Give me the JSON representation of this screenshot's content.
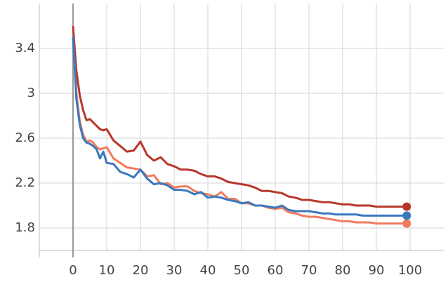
{
  "chart_data": {
    "type": "line",
    "x": [
      0,
      1,
      2,
      3,
      4,
      5,
      6,
      7,
      8,
      9,
      10,
      12,
      14,
      16,
      18,
      20,
      22,
      24,
      26,
      28,
      30,
      32,
      34,
      36,
      38,
      40,
      42,
      44,
      46,
      48,
      50,
      52,
      54,
      56,
      58,
      60,
      62,
      64,
      66,
      68,
      70,
      72,
      74,
      76,
      78,
      80,
      82,
      84,
      86,
      88,
      90,
      92,
      94,
      96,
      98,
      99
    ],
    "series": [
      {
        "color": "#b8372b",
        "values": [
          3.6,
          3.2,
          2.98,
          2.85,
          2.76,
          2.77,
          2.74,
          2.71,
          2.68,
          2.67,
          2.68,
          2.58,
          2.53,
          2.48,
          2.49,
          2.57,
          2.45,
          2.4,
          2.43,
          2.37,
          2.35,
          2.32,
          2.32,
          2.31,
          2.28,
          2.26,
          2.26,
          2.24,
          2.21,
          2.2,
          2.19,
          2.18,
          2.16,
          2.13,
          2.13,
          2.12,
          2.11,
          2.08,
          2.07,
          2.05,
          2.05,
          2.04,
          2.03,
          2.03,
          2.02,
          2.01,
          2.01,
          2.0,
          2.0,
          2.0,
          1.99,
          1.99,
          1.99,
          1.99,
          1.99,
          1.99
        ]
      },
      {
        "color": "#ef7b5c",
        "values": [
          3.5,
          3.0,
          2.75,
          2.63,
          2.57,
          2.58,
          2.56,
          2.52,
          2.5,
          2.51,
          2.52,
          2.42,
          2.38,
          2.34,
          2.33,
          2.32,
          2.26,
          2.27,
          2.19,
          2.2,
          2.16,
          2.17,
          2.17,
          2.13,
          2.11,
          2.1,
          2.08,
          2.12,
          2.06,
          2.06,
          2.02,
          2.02,
          2.0,
          2.0,
          1.98,
          1.97,
          1.98,
          1.94,
          1.93,
          1.91,
          1.9,
          1.9,
          1.89,
          1.88,
          1.87,
          1.86,
          1.86,
          1.85,
          1.85,
          1.85,
          1.84,
          1.84,
          1.84,
          1.84,
          1.84,
          1.84
        ]
      },
      {
        "color": "#3a78be",
        "values": [
          3.5,
          2.95,
          2.72,
          2.6,
          2.56,
          2.55,
          2.53,
          2.5,
          2.42,
          2.48,
          2.38,
          2.37,
          2.3,
          2.28,
          2.25,
          2.32,
          2.24,
          2.19,
          2.2,
          2.18,
          2.14,
          2.14,
          2.13,
          2.1,
          2.12,
          2.07,
          2.08,
          2.07,
          2.05,
          2.04,
          2.02,
          2.03,
          2.0,
          2.0,
          1.99,
          1.98,
          2.0,
          1.96,
          1.95,
          1.95,
          1.95,
          1.94,
          1.93,
          1.93,
          1.92,
          1.92,
          1.92,
          1.92,
          1.91,
          1.91,
          1.91,
          1.91,
          1.91,
          1.91,
          1.91,
          1.91
        ]
      }
    ],
    "xlim": [
      -10,
      110
    ],
    "xticks": [
      0,
      10,
      20,
      30,
      40,
      50,
      60,
      70,
      80,
      90,
      100
    ],
    "ylim": [
      1.6,
      3.8
    ],
    "yticks": [
      1.8,
      2.2,
      2.6,
      3,
      3.4
    ],
    "grid": true
  }
}
